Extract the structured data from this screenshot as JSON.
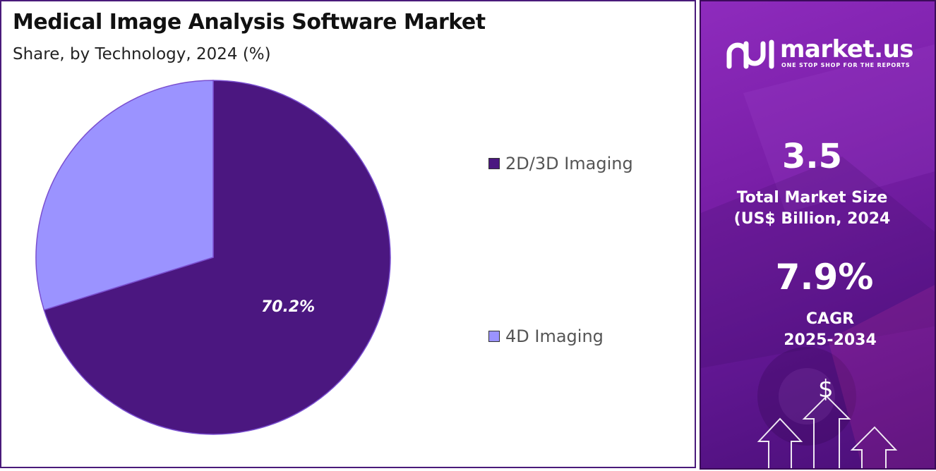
{
  "chart_data": {
    "type": "pie",
    "title": "Medical Image Analysis Software Market",
    "subtitle": "Share, by Technology, 2024 (%)",
    "categories": [
      "2D/3D Imaging",
      "4D Imaging"
    ],
    "values": [
      70.2,
      29.8
    ],
    "data_labels": [
      "70.2%",
      ""
    ],
    "colors": [
      "#4b1780",
      "#9b93ff"
    ],
    "legend_placement": "right"
  },
  "sidebar": {
    "logo_text": "market.us",
    "logo_tagline": "ONE STOP SHOP FOR THE REPORTS",
    "market_size_value": "3.5",
    "market_size_label_line1": "Total Market Size",
    "market_size_label_line2": "(US$ Billion, 2024",
    "cagr_value": "7.9%",
    "cagr_label_line1": "CAGR",
    "cagr_label_line2": "2025-2034",
    "dollar_symbol": "$",
    "icons": [
      "logo-icon",
      "arrow-up-icon",
      "dollar-icon"
    ]
  }
}
